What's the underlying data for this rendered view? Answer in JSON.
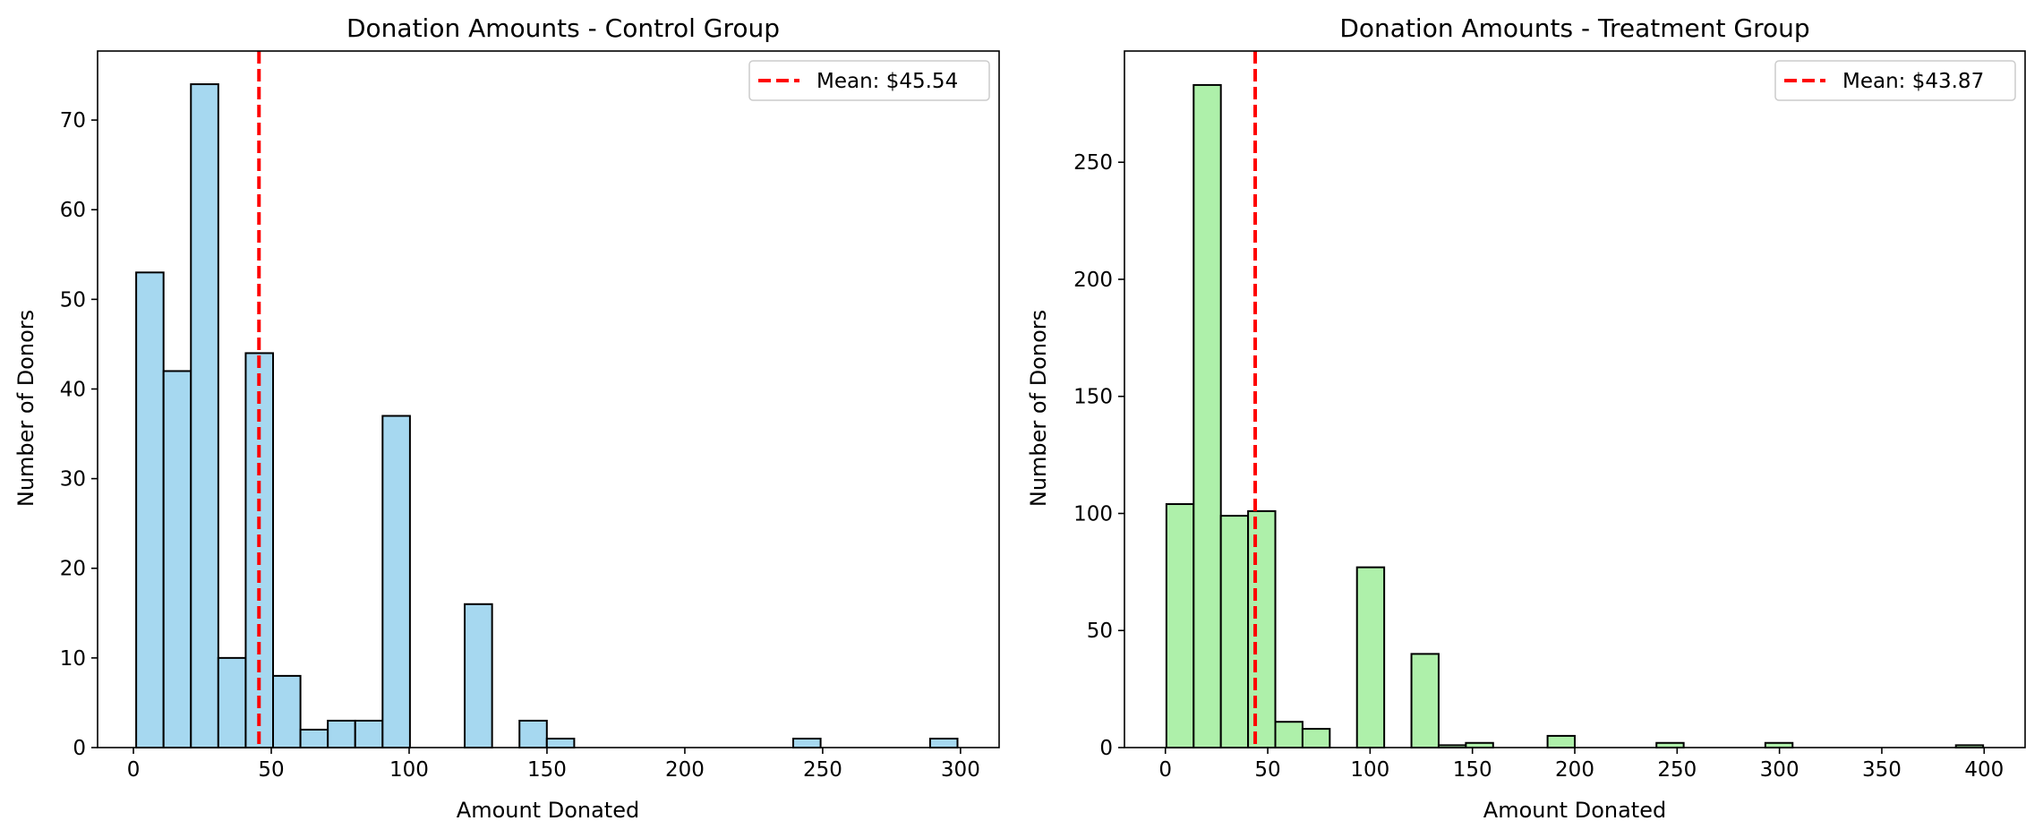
{
  "chart_data": [
    {
      "type": "bar",
      "title": "Donation Amounts - Control Group",
      "xlabel": "Amount Donated",
      "ylabel": "Number of Donors",
      "xlim": [
        -13,
        314
      ],
      "ylim": [
        0,
        77.7
      ],
      "xticks": [
        0,
        50,
        100,
        150,
        200,
        250,
        300
      ],
      "yticks": [
        0,
        10,
        20,
        30,
        40,
        50,
        60,
        70
      ],
      "bin_width": 9.93,
      "bins_x": [
        1,
        10.93,
        20.86,
        30.79,
        40.72,
        50.65,
        60.58,
        70.51,
        80.44,
        90.37,
        100.3,
        110.23,
        120.16,
        130.09,
        140.02,
        149.95,
        159.88,
        169.81,
        179.74,
        189.67,
        199.6,
        209.53,
        219.46,
        229.39,
        239.32,
        249.25,
        259.18,
        269.11,
        279.04,
        288.97
      ],
      "values": [
        53,
        42,
        74,
        10,
        44,
        8,
        2,
        3,
        3,
        37,
        0,
        0,
        16,
        0,
        3,
        1,
        0,
        0,
        0,
        0,
        0,
        0,
        0,
        0,
        1,
        0,
        0,
        0,
        0,
        1
      ],
      "bar_color": "#a6d8f0",
      "mean_line": {
        "value": 45.54,
        "color": "#ff0000",
        "label": "Mean: $45.54"
      },
      "legend_position": "top-right",
      "grid": false
    },
    {
      "type": "bar",
      "title": "Donation Amounts - Treatment Group",
      "xlabel": "Amount Donated",
      "ylabel": "Number of Donors",
      "xlim": [
        -20,
        420
      ],
      "ylim": [
        0,
        297.5
      ],
      "xticks": [
        0,
        50,
        100,
        150,
        200,
        250,
        300,
        350,
        400
      ],
      "yticks": [
        0,
        50,
        100,
        150,
        200,
        250
      ],
      "bin_width": 13.3,
      "bins_x": [
        0.5,
        13.8,
        27.1,
        40.4,
        53.7,
        67,
        80.3,
        93.6,
        106.9,
        120.2,
        133.5,
        146.8,
        160.1,
        173.4,
        186.7,
        200,
        213.3,
        226.6,
        239.9,
        253.2,
        266.5,
        279.8,
        293.1,
        306.4,
        319.7,
        333,
        346.3,
        359.6,
        372.9,
        386.2
      ],
      "values": [
        104,
        283,
        99,
        101,
        11,
        8,
        0,
        77,
        0,
        40,
        1,
        2,
        0,
        0,
        5,
        0,
        0,
        0,
        2,
        0,
        0,
        0,
        2,
        0,
        0,
        0,
        0,
        0,
        0,
        1
      ],
      "bar_color": "#aef0aa",
      "mean_line": {
        "value": 43.87,
        "color": "#ff0000",
        "label": "Mean: $43.87"
      },
      "legend_position": "top-right",
      "grid": false
    }
  ]
}
